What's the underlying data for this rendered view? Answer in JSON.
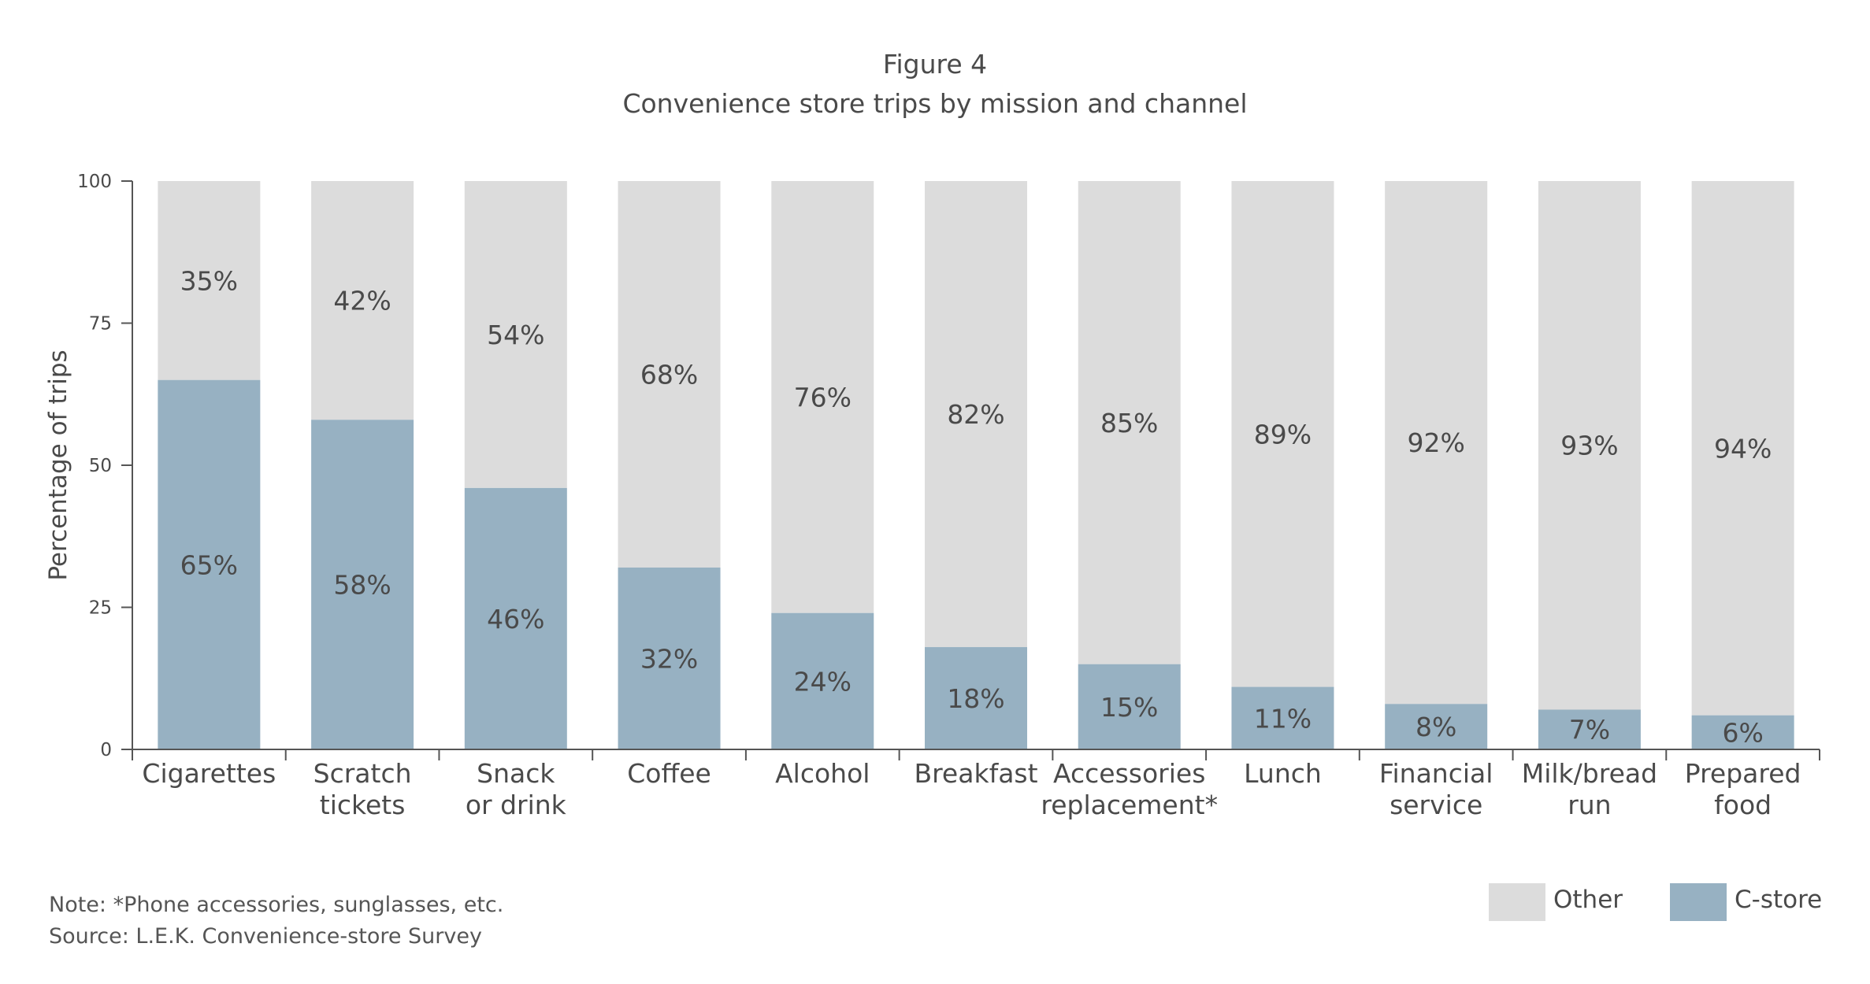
{
  "figure_label": "Figure 4",
  "title": "Convenience store trips by mission and channel",
  "note": "Note: *Phone accessories, sunglasses, etc.",
  "source": "Source: L.E.K. Convenience-store Survey",
  "colors": {
    "cstore": "#97b1c2",
    "other": "#dcdcdc",
    "axis": "#555555",
    "label": "#4a4a4a"
  },
  "chart_data": {
    "type": "bar",
    "stacked": true,
    "ylabel": "Percentage of trips",
    "xlabel": "",
    "ylim": [
      0,
      100
    ],
    "yticks": [
      0,
      25,
      50,
      75,
      100
    ],
    "grid": false,
    "legend_position": "bottom-right",
    "categories": [
      [
        "Cigarettes"
      ],
      [
        "Scratch",
        "tickets"
      ],
      [
        "Snack",
        "or drink"
      ],
      [
        "Coffee"
      ],
      [
        "Alcohol"
      ],
      [
        "Breakfast"
      ],
      [
        "Accessories",
        "replacement*"
      ],
      [
        "Lunch"
      ],
      [
        "Financial",
        "service"
      ],
      [
        "Milk/bread",
        "run"
      ],
      [
        "Prepared",
        "food"
      ]
    ],
    "series": [
      {
        "name": "C-store",
        "values": [
          65,
          58,
          46,
          32,
          24,
          18,
          15,
          11,
          8,
          7,
          6
        ],
        "labels": [
          "65%",
          "58%",
          "46%",
          "32%",
          "24%",
          "18%",
          "15%",
          "11%",
          "8%",
          "7%",
          "6%"
        ]
      },
      {
        "name": "Other",
        "values": [
          35,
          42,
          54,
          68,
          76,
          82,
          85,
          89,
          92,
          93,
          94
        ],
        "labels": [
          "35%",
          "42%",
          "54%",
          "68%",
          "76%",
          "82%",
          "85%",
          "89%",
          "92%",
          "93%",
          "94%"
        ]
      }
    ]
  }
}
